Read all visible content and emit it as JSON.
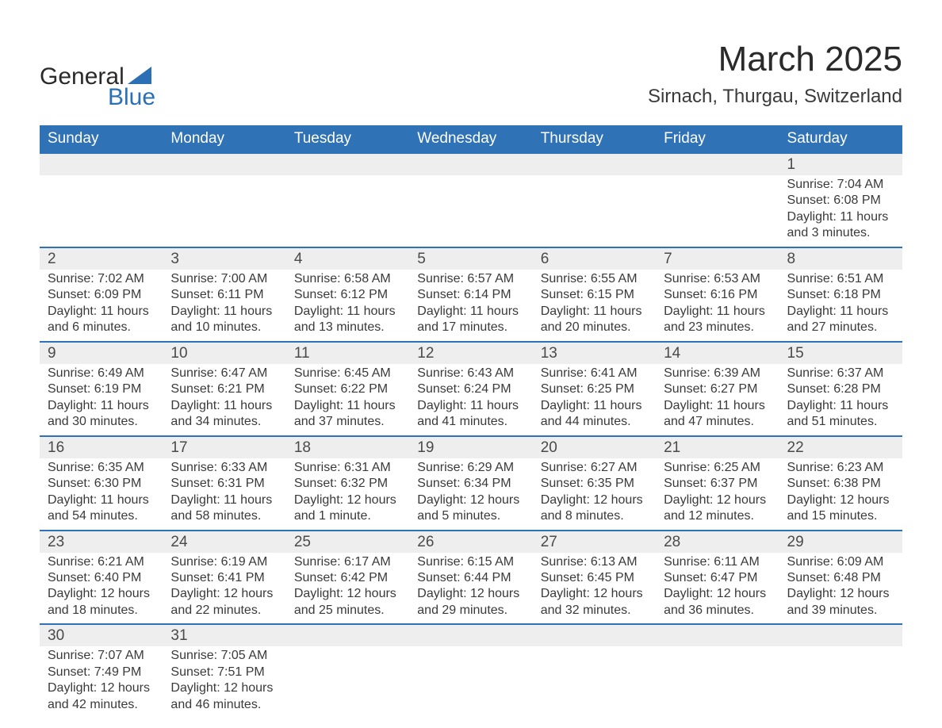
{
  "brand": {
    "word1": "General",
    "word2": "Blue"
  },
  "title": {
    "month": "March 2025",
    "location": "Sirnach, Thurgau, Switzerland"
  },
  "colors": {
    "header_bg": "#2f72b6",
    "header_text": "#ffffff",
    "daynum_bg": "#eeeeee",
    "daynum_border": "#2f72b6",
    "body_text": "#3a3a3a",
    "brand_blue": "#2b6fb5"
  },
  "dayHeaders": [
    "Sunday",
    "Monday",
    "Tuesday",
    "Wednesday",
    "Thursday",
    "Friday",
    "Saturday"
  ],
  "weeks": [
    {
      "nums": [
        "",
        "",
        "",
        "",
        "",
        "",
        "1"
      ],
      "cells": [
        "",
        "",
        "",
        "",
        "",
        "",
        "Sunrise: 7:04 AM\nSunset: 6:08 PM\nDaylight: 11 hours and 3 minutes."
      ]
    },
    {
      "nums": [
        "2",
        "3",
        "4",
        "5",
        "6",
        "7",
        "8"
      ],
      "cells": [
        "Sunrise: 7:02 AM\nSunset: 6:09 PM\nDaylight: 11 hours and 6 minutes.",
        "Sunrise: 7:00 AM\nSunset: 6:11 PM\nDaylight: 11 hours and 10 minutes.",
        "Sunrise: 6:58 AM\nSunset: 6:12 PM\nDaylight: 11 hours and 13 minutes.",
        "Sunrise: 6:57 AM\nSunset: 6:14 PM\nDaylight: 11 hours and 17 minutes.",
        "Sunrise: 6:55 AM\nSunset: 6:15 PM\nDaylight: 11 hours and 20 minutes.",
        "Sunrise: 6:53 AM\nSunset: 6:16 PM\nDaylight: 11 hours and 23 minutes.",
        "Sunrise: 6:51 AM\nSunset: 6:18 PM\nDaylight: 11 hours and 27 minutes."
      ]
    },
    {
      "nums": [
        "9",
        "10",
        "11",
        "12",
        "13",
        "14",
        "15"
      ],
      "cells": [
        "Sunrise: 6:49 AM\nSunset: 6:19 PM\nDaylight: 11 hours and 30 minutes.",
        "Sunrise: 6:47 AM\nSunset: 6:21 PM\nDaylight: 11 hours and 34 minutes.",
        "Sunrise: 6:45 AM\nSunset: 6:22 PM\nDaylight: 11 hours and 37 minutes.",
        "Sunrise: 6:43 AM\nSunset: 6:24 PM\nDaylight: 11 hours and 41 minutes.",
        "Sunrise: 6:41 AM\nSunset: 6:25 PM\nDaylight: 11 hours and 44 minutes.",
        "Sunrise: 6:39 AM\nSunset: 6:27 PM\nDaylight: 11 hours and 47 minutes.",
        "Sunrise: 6:37 AM\nSunset: 6:28 PM\nDaylight: 11 hours and 51 minutes."
      ]
    },
    {
      "nums": [
        "16",
        "17",
        "18",
        "19",
        "20",
        "21",
        "22"
      ],
      "cells": [
        "Sunrise: 6:35 AM\nSunset: 6:30 PM\nDaylight: 11 hours and 54 minutes.",
        "Sunrise: 6:33 AM\nSunset: 6:31 PM\nDaylight: 11 hours and 58 minutes.",
        "Sunrise: 6:31 AM\nSunset: 6:32 PM\nDaylight: 12 hours and 1 minute.",
        "Sunrise: 6:29 AM\nSunset: 6:34 PM\nDaylight: 12 hours and 5 minutes.",
        "Sunrise: 6:27 AM\nSunset: 6:35 PM\nDaylight: 12 hours and 8 minutes.",
        "Sunrise: 6:25 AM\nSunset: 6:37 PM\nDaylight: 12 hours and 12 minutes.",
        "Sunrise: 6:23 AM\nSunset: 6:38 PM\nDaylight: 12 hours and 15 minutes."
      ]
    },
    {
      "nums": [
        "23",
        "24",
        "25",
        "26",
        "27",
        "28",
        "29"
      ],
      "cells": [
        "Sunrise: 6:21 AM\nSunset: 6:40 PM\nDaylight: 12 hours and 18 minutes.",
        "Sunrise: 6:19 AM\nSunset: 6:41 PM\nDaylight: 12 hours and 22 minutes.",
        "Sunrise: 6:17 AM\nSunset: 6:42 PM\nDaylight: 12 hours and 25 minutes.",
        "Sunrise: 6:15 AM\nSunset: 6:44 PM\nDaylight: 12 hours and 29 minutes.",
        "Sunrise: 6:13 AM\nSunset: 6:45 PM\nDaylight: 12 hours and 32 minutes.",
        "Sunrise: 6:11 AM\nSunset: 6:47 PM\nDaylight: 12 hours and 36 minutes.",
        "Sunrise: 6:09 AM\nSunset: 6:48 PM\nDaylight: 12 hours and 39 minutes."
      ]
    },
    {
      "nums": [
        "30",
        "31",
        "",
        "",
        "",
        "",
        ""
      ],
      "cells": [
        "Sunrise: 7:07 AM\nSunset: 7:49 PM\nDaylight: 12 hours and 42 minutes.",
        "Sunrise: 7:05 AM\nSunset: 7:51 PM\nDaylight: 12 hours and 46 minutes.",
        "",
        "",
        "",
        "",
        ""
      ]
    }
  ]
}
